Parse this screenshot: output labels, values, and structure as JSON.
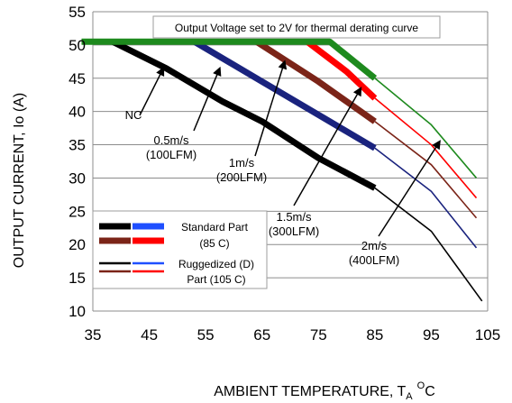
{
  "chart_data": {
    "type": "line",
    "title": "",
    "xlabel": "AMBIENT TEMPERATURE, T",
    "xlabel_sub": "A",
    "xlabel_sup": "O",
    "xlabel_tail": "C",
    "ylabel": "OUTPUT CURRENT, Io  (A)",
    "xlim": [
      35,
      105
    ],
    "ylim": [
      10,
      55
    ],
    "xticks": [
      35,
      45,
      55,
      65,
      75,
      85,
      95,
      105
    ],
    "yticks": [
      10,
      15,
      20,
      25,
      30,
      35,
      40,
      45,
      50,
      55
    ],
    "grid": "horizontal",
    "note": "Output Voltage set to 2V for thermal derating curve",
    "series": [
      {
        "color": "#000000",
        "x": [
          38.5,
          48,
          58,
          65,
          75,
          85,
          95,
          104
        ],
        "y": [
          50.5,
          46.5,
          41.5,
          38.5,
          33.0,
          28.5,
          22.0,
          11.5
        ],
        "thick_until": 85
      },
      {
        "color": "#1a237e",
        "x": [
          53,
          65,
          75,
          85,
          95,
          103
        ],
        "y": [
          50.5,
          44.5,
          39.5,
          34.5,
          28.0,
          19.5
        ],
        "thick_until": 85
      },
      {
        "color": "#7b2418",
        "x": [
          64,
          75,
          85,
          95,
          103
        ],
        "y": [
          50.5,
          44.5,
          38.5,
          32.0,
          24.0
        ],
        "thick_until": 85
      },
      {
        "color": "#ff0000",
        "x": [
          73,
          80,
          85,
          95,
          103
        ],
        "y": [
          50.5,
          46.0,
          42.0,
          35.0,
          27.0
        ],
        "thick_until": 85
      },
      {
        "color": "#1e8a1e",
        "x": [
          33,
          50,
          77,
          85,
          95,
          103
        ],
        "y": [
          50.5,
          50.5,
          50.5,
          45.0,
          38.0,
          30.0
        ],
        "thick_until": 85
      }
    ],
    "annotations": [
      {
        "lines": [
          "NC"
        ],
        "at": [
          47.5,
          46.5
        ]
      },
      {
        "lines": [
          "0.5m/s",
          "(100LFM)"
        ],
        "at": [
          57.5,
          46.5
        ]
      },
      {
        "lines": [
          "1m/s",
          "(200LFM)"
        ],
        "at": [
          69,
          47.5
        ]
      },
      {
        "lines": [
          "1.5m/s",
          "(300LFM)"
        ],
        "at": [
          82.5,
          43.5
        ]
      },
      {
        "lines": [
          "2m/s",
          "(400LFM)"
        ],
        "at": [
          96.5,
          35.5
        ]
      }
    ],
    "legend": {
      "placement": "lower-left",
      "entries": [
        {
          "lines": [
            "Standard Part",
            "(85  C)"
          ]
        },
        {
          "lines": [
            "Ruggedized (D)",
            "Part (105  C)"
          ]
        }
      ]
    }
  }
}
